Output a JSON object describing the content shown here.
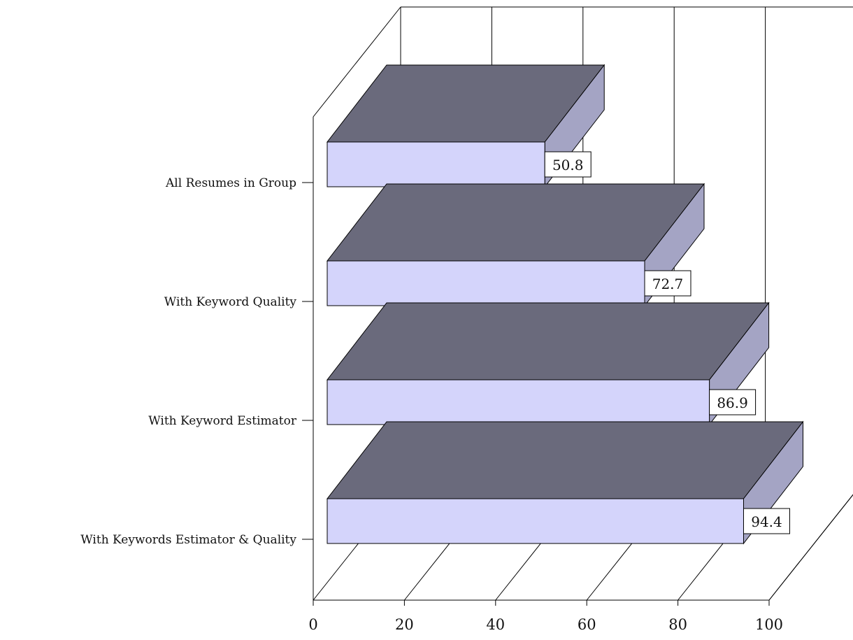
{
  "chart_data": {
    "type": "bar",
    "orientation": "horizontal",
    "style": "3d",
    "categories": [
      "All Resumes in Group",
      "With Keyword Quality",
      "With Keyword Estimator",
      "With Keywords Estimator & Quality"
    ],
    "values": [
      50.8,
      72.7,
      86.9,
      94.4
    ],
    "value_labels": [
      "50.8",
      "72.7",
      "86.9",
      "94.4"
    ],
    "xlim": [
      0,
      100
    ],
    "x_ticks": [
      "0",
      "20",
      "40",
      "60",
      "80",
      "100"
    ],
    "grid": true,
    "legend": "none",
    "colors": {
      "bar_front": "#d4d4fb",
      "bar_top": "#6a6a7c",
      "bar_side": "#a4a4c4"
    }
  }
}
